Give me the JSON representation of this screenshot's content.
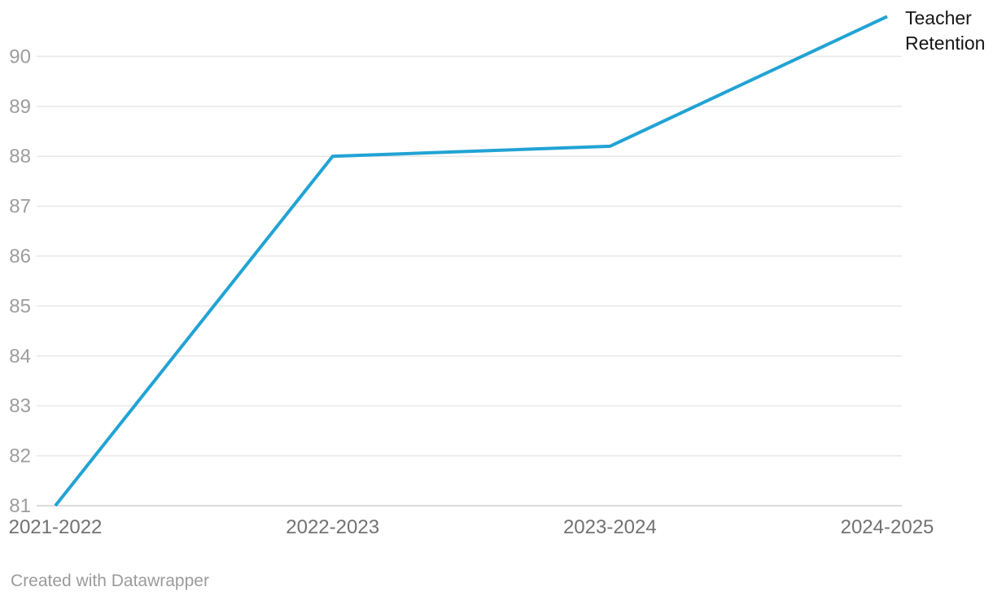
{
  "chart_data": {
    "type": "line",
    "categories": [
      "2021-2022",
      "2022-2023",
      "2023-2024",
      "2024-2025"
    ],
    "series": [
      {
        "name": "Teacher Retention",
        "values": [
          81,
          88,
          88.2,
          90.8
        ]
      }
    ],
    "title": "",
    "xlabel": "",
    "ylabel": "",
    "ylim": [
      81,
      91
    ],
    "y_ticks": [
      81,
      82,
      83,
      84,
      85,
      86,
      87,
      88,
      89,
      90
    ],
    "grid": true,
    "legend_position": "end-of-line"
  },
  "colors": {
    "line": "#21a3d4",
    "gridline": "#e8e8e8",
    "baseline": "#dcdcdc",
    "y_tick_label": "#9d9d9d",
    "x_tick_label": "#727272",
    "series_label": "#161616",
    "footer": "#9b9b9b"
  },
  "footer": {
    "credit": "Created with Datawrapper"
  }
}
